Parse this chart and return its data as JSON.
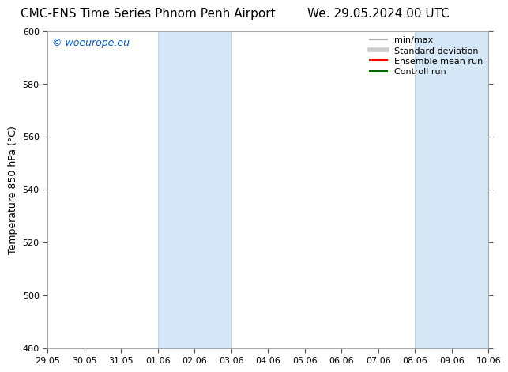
{
  "title_left": "CMC-ENS Time Series Phnom Penh Airport",
  "title_right": "We. 29.05.2024 00 UTC",
  "ylabel": "Temperature 850 hPa (°C)",
  "ylim": [
    480,
    600
  ],
  "yticks": [
    480,
    500,
    520,
    540,
    560,
    580,
    600
  ],
  "xtick_labels": [
    "29.05",
    "30.05",
    "31.05",
    "01.06",
    "02.06",
    "03.06",
    "04.06",
    "05.06",
    "06.06",
    "07.06",
    "08.06",
    "09.06",
    "10.06"
  ],
  "xtick_positions": [
    0,
    1,
    2,
    3,
    4,
    5,
    6,
    7,
    8,
    9,
    10,
    11,
    12
  ],
  "shaded_regions": [
    {
      "start": 3,
      "end": 5
    },
    {
      "start": 10,
      "end": 12
    }
  ],
  "shaded_color": "#d6e8f7",
  "shaded_edge_color": "#aac8e8",
  "background_color": "#ffffff",
  "plot_bg_color": "#ffffff",
  "watermark_text": "© woeurope.eu",
  "watermark_color": "#0055cc",
  "legend_items": [
    {
      "label": "min/max",
      "color": "#aaaaaa",
      "linewidth": 1.5,
      "linestyle": "-"
    },
    {
      "label": "Standard deviation",
      "color": "#cccccc",
      "linewidth": 4,
      "linestyle": "-"
    },
    {
      "label": "Ensemble mean run",
      "color": "#ff0000",
      "linewidth": 1.5,
      "linestyle": "-"
    },
    {
      "label": "Controll run",
      "color": "#006600",
      "linewidth": 1.5,
      "linestyle": "-"
    }
  ],
  "spine_color": "#aaaaaa",
  "font_size_title": 11,
  "font_size_axis": 9,
  "font_size_ticks": 8,
  "font_size_legend": 8,
  "font_size_watermark": 9
}
